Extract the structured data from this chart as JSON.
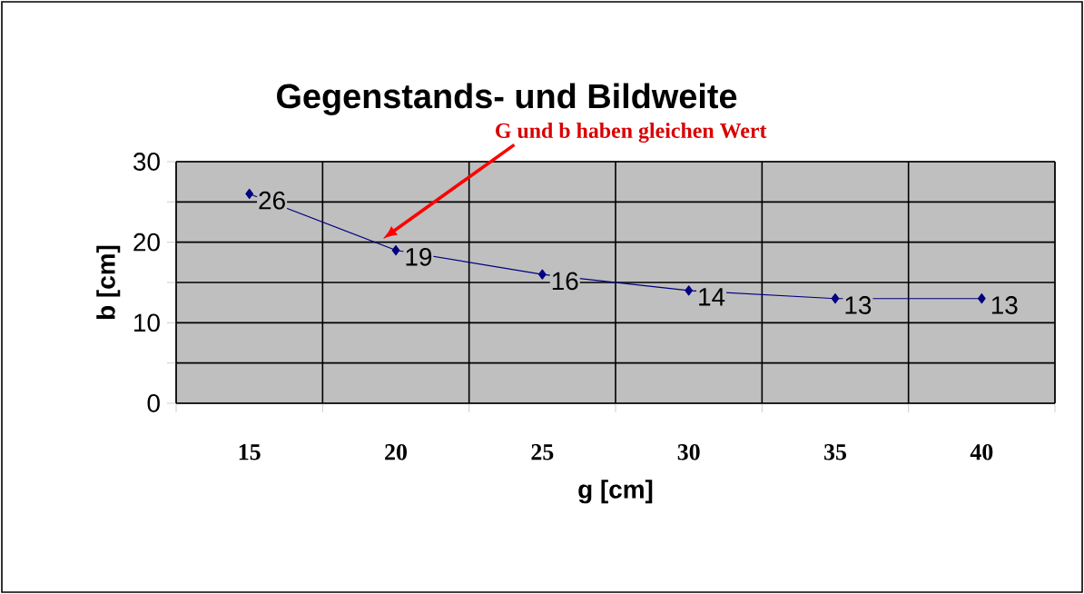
{
  "chart_data": {
    "type": "line",
    "title": "Gegenstands- und Bildweite",
    "xlabel": "g [cm]",
    "ylabel": "b [cm]",
    "categories": [
      "15",
      "20",
      "25",
      "30",
      "35",
      "40"
    ],
    "series": [
      {
        "color": "#000080",
        "values": [
          26,
          19,
          16,
          14,
          13,
          13
        ]
      }
    ],
    "ylim": [
      0,
      30
    ],
    "yticks": [
      0,
      {
        "value": 5,
        "label": null
      },
      10,
      {
        "value": 15,
        "label": null
      },
      20,
      {
        "value": 25,
        "label": null
      },
      30
    ],
    "grid": true,
    "marker": "diamond",
    "line_style": "solid",
    "data_labels": true,
    "annotations": [
      "G und b haben gleichen Wert"
    ]
  }
}
